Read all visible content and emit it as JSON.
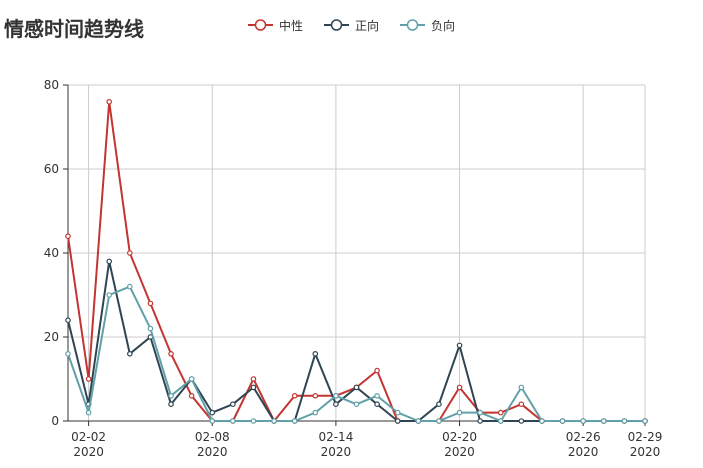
{
  "chart_data": {
    "type": "line",
    "title": "情感时间趋势线",
    "xlabel": "",
    "ylabel": "",
    "x": [
      "2020-02-01",
      "2020-02-02",
      "2020-02-03",
      "2020-02-04",
      "2020-02-05",
      "2020-02-06",
      "2020-02-07",
      "2020-02-08",
      "2020-02-09",
      "2020-02-10",
      "2020-02-11",
      "2020-02-12",
      "2020-02-13",
      "2020-02-14",
      "2020-02-15",
      "2020-02-16",
      "2020-02-17",
      "2020-02-18",
      "2020-02-19",
      "2020-02-20",
      "2020-02-21",
      "2020-02-22",
      "2020-02-23",
      "2020-02-24",
      "2020-02-25",
      "2020-02-26",
      "2020-02-27",
      "2020-02-28",
      "2020-02-29"
    ],
    "ylim": [
      0,
      80
    ],
    "yticks": [
      0,
      20,
      40,
      60,
      80
    ],
    "xticks": [
      {
        "date": "2020-02-02",
        "md": "02-02",
        "year": "2020"
      },
      {
        "date": "2020-02-08",
        "md": "02-08",
        "year": "2020"
      },
      {
        "date": "2020-02-14",
        "md": "02-14",
        "year": "2020"
      },
      {
        "date": "2020-02-20",
        "md": "02-20",
        "year": "2020"
      },
      {
        "date": "2020-02-26",
        "md": "02-26",
        "year": "2020"
      },
      {
        "date": "2020-02-29",
        "md": "02-29",
        "year": "2020"
      }
    ],
    "grid": true,
    "legend_position": "top-center",
    "series": [
      {
        "name": "中性",
        "color": "#c23531",
        "values": [
          44,
          10,
          76,
          40,
          28,
          16,
          6,
          0,
          0,
          10,
          0,
          6,
          6,
          6,
          8,
          12,
          0,
          0,
          0,
          8,
          2,
          2,
          4,
          0,
          0,
          0,
          0,
          0,
          0
        ]
      },
      {
        "name": "正向",
        "color": "#2f4554",
        "values": [
          24,
          4,
          38,
          16,
          20,
          4,
          10,
          2,
          4,
          8,
          0,
          0,
          16,
          4,
          8,
          4,
          0,
          0,
          4,
          18,
          0,
          0,
          0,
          0,
          0,
          0,
          0,
          0,
          0
        ]
      },
      {
        "name": "负向",
        "color": "#61a0a8",
        "values": [
          16,
          2,
          30,
          32,
          22,
          6,
          10,
          0,
          0,
          0,
          0,
          0,
          2,
          6,
          4,
          6,
          2,
          0,
          0,
          2,
          2,
          0,
          8,
          0,
          0,
          0,
          0,
          0,
          0
        ]
      }
    ]
  }
}
